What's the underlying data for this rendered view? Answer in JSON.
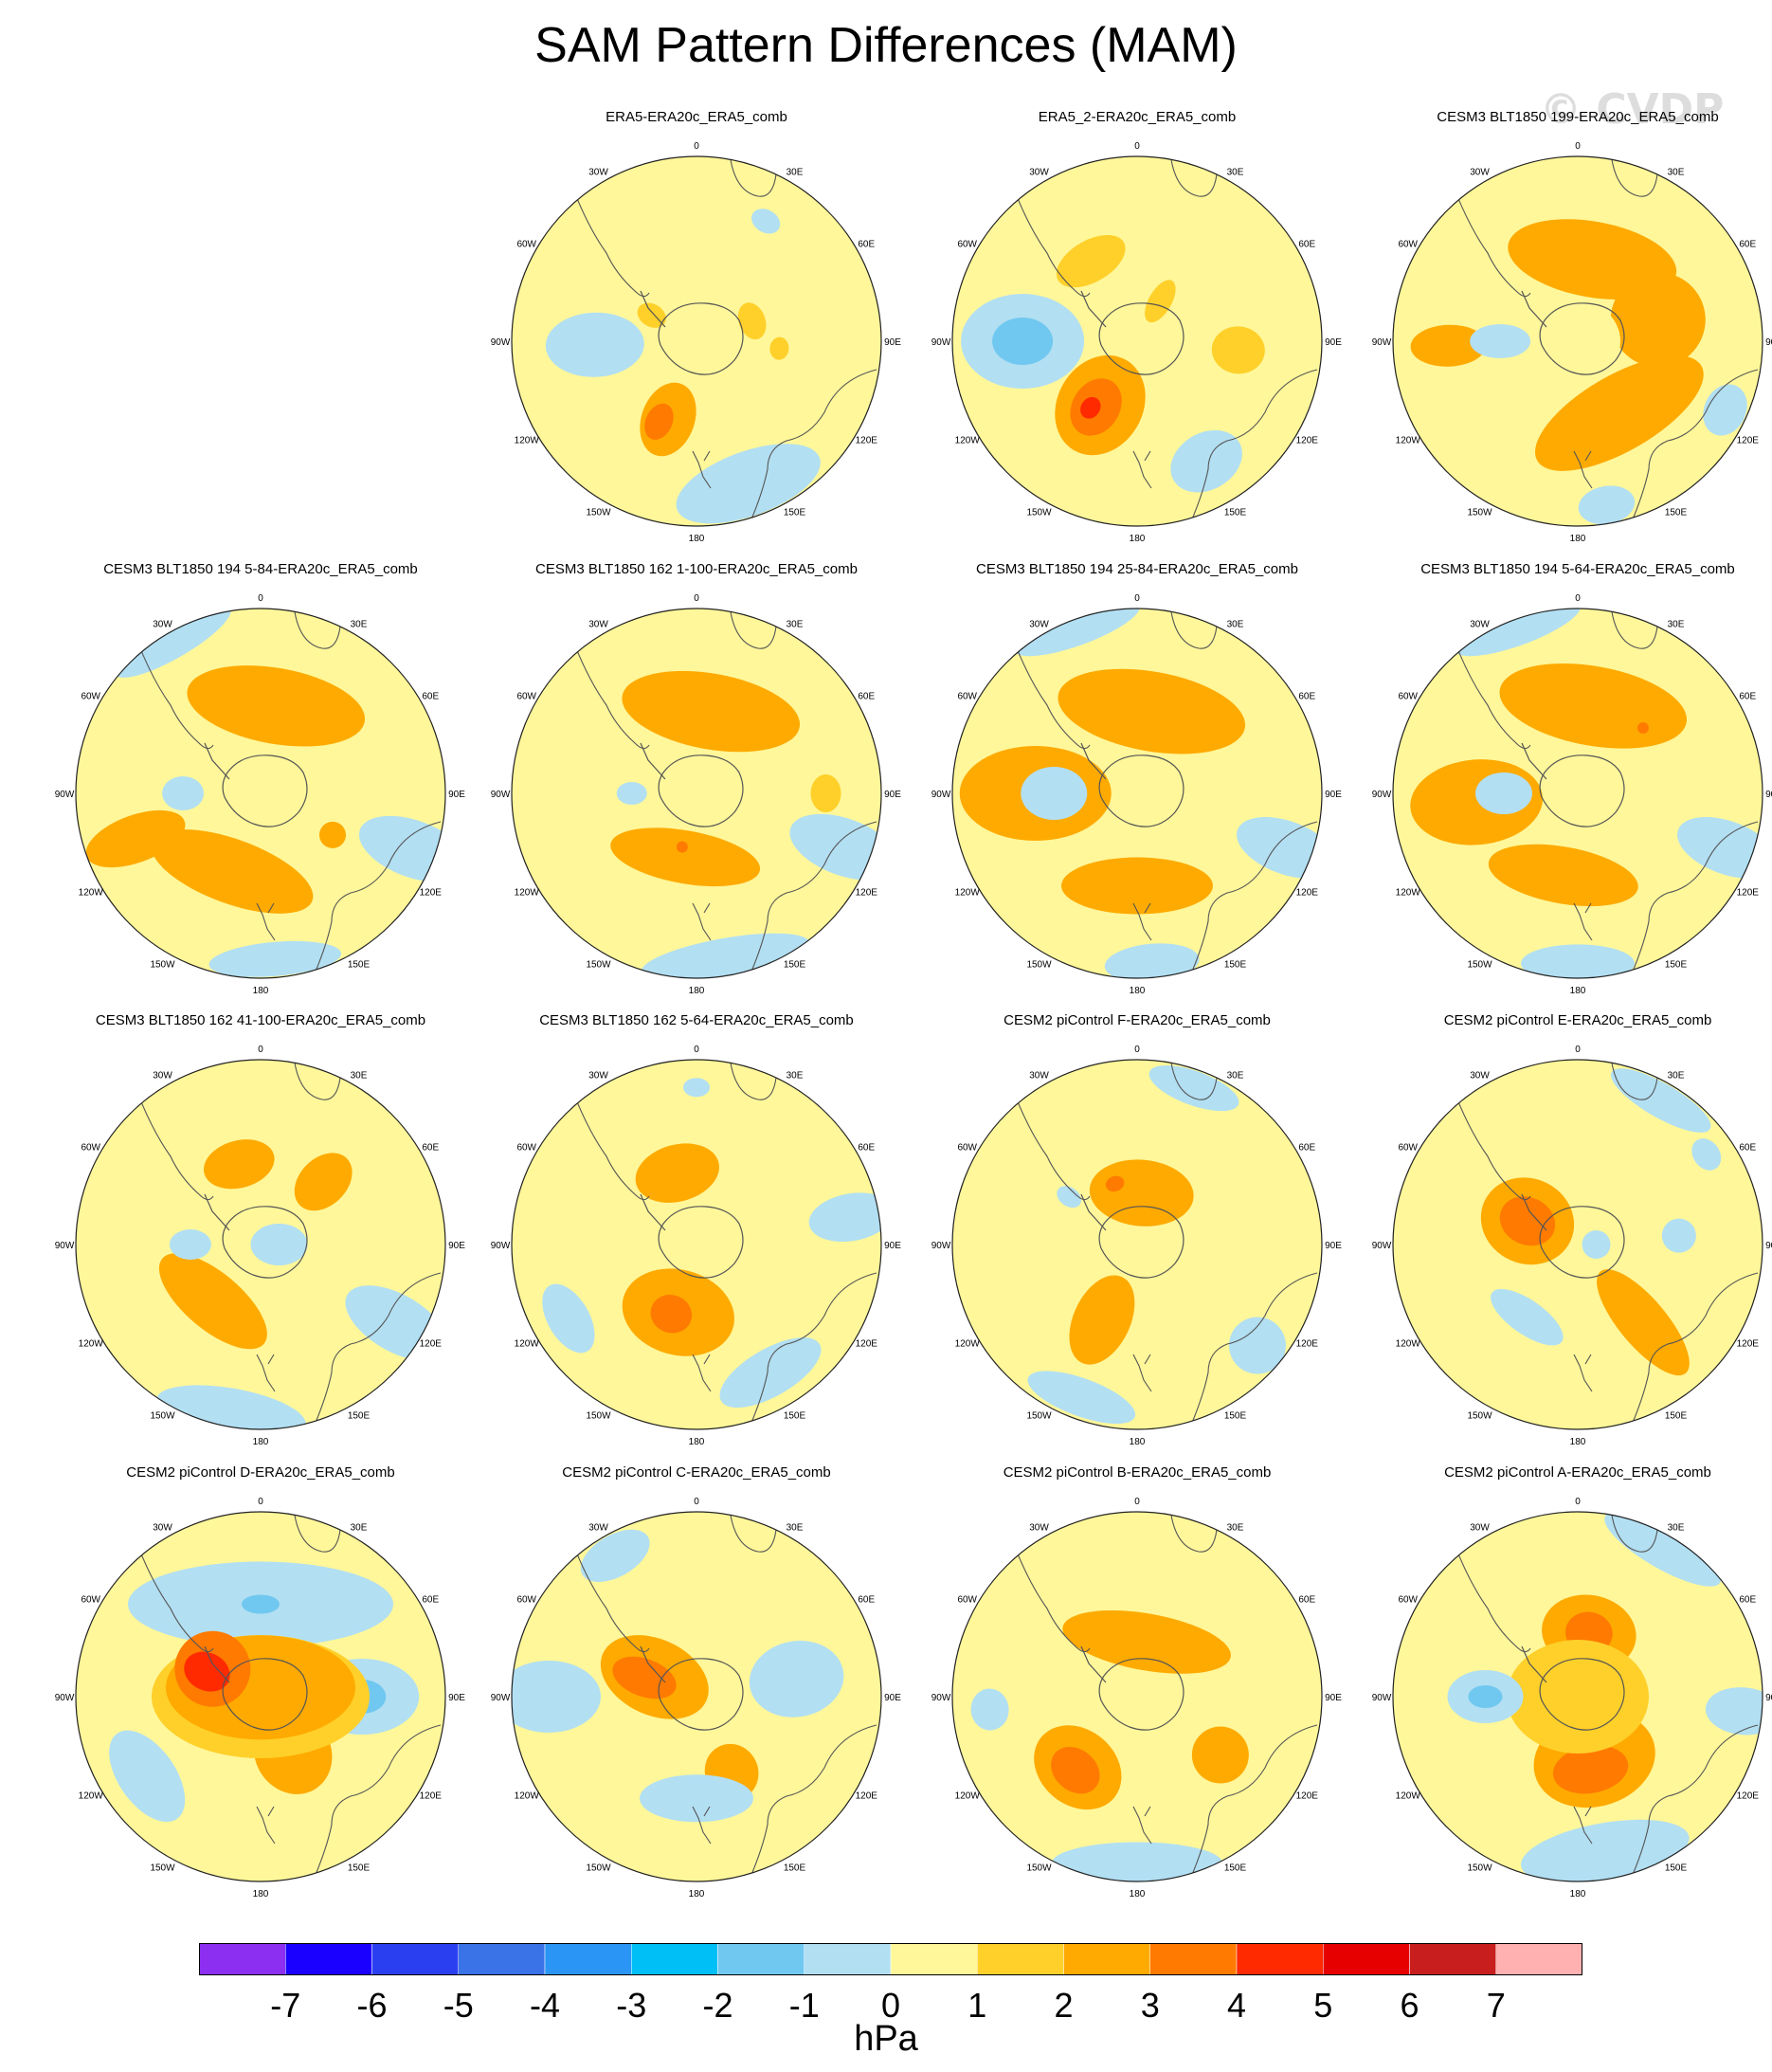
{
  "title": "SAM Pattern Differences (MAM)",
  "watermark": "© CVDP",
  "units": "hPa",
  "lon_labels": [
    "0",
    "30E",
    "60E",
    "90E",
    "120E",
    "150E",
    "180",
    "150W",
    "120W",
    "90W",
    "60W",
    "30W"
  ],
  "colorbar": {
    "colors": [
      "#8c2ff0",
      "#1a00ff",
      "#2a40f0",
      "#3a72e8",
      "#2a95f5",
      "#00bff7",
      "#70c8f0",
      "#b2dff2",
      "#fff79a",
      "#ffd02a",
      "#ffaa00",
      "#ff7a00",
      "#ff2a00",
      "#e60000",
      "#c81e1e",
      "#ffb0b0"
    ],
    "labels": [
      "-7",
      "-6",
      "-5",
      "-4",
      "-3",
      "-2",
      "-1",
      "0",
      "1",
      "2",
      "3",
      "4",
      "5",
      "6",
      "7"
    ]
  },
  "panels": [
    {
      "title": "ERA5-ERA20c_ERA5_comb",
      "blobs": [
        {
          "lon": 200,
          "r": 0.45,
          "rx": 28,
          "ry": 40,
          "level": 2
        },
        {
          "lon": 205,
          "r": 0.48,
          "rx": 14,
          "ry": 20,
          "level": 3
        },
        {
          "lon": 160,
          "r": 0.82,
          "rx": 80,
          "ry": 34,
          "level": -1
        },
        {
          "lon": 268,
          "r": 0.55,
          "rx": 34,
          "ry": 52,
          "level": -1
        },
        {
          "lon": 30,
          "r": 0.75,
          "rx": 16,
          "ry": 12,
          "level": -1
        },
        {
          "lon": 300,
          "r": 0.28,
          "rx": 12,
          "ry": 16,
          "level": 1
        },
        {
          "lon": 70,
          "r": 0.32,
          "rx": 20,
          "ry": 14,
          "level": 1
        },
        {
          "lon": 95,
          "r": 0.45,
          "rx": 12,
          "ry": 10,
          "level": 1
        }
      ]
    },
    {
      "title": "ERA5_2-ERA20c_ERA5_comb",
      "blobs": [
        {
          "lon": 210,
          "r": 0.4,
          "rx": 45,
          "ry": 55,
          "level": 2
        },
        {
          "lon": 212,
          "r": 0.42,
          "rx": 25,
          "ry": 32,
          "level": 3
        },
        {
          "lon": 215,
          "r": 0.44,
          "rx": 10,
          "ry": 12,
          "level": 4
        },
        {
          "lon": 270,
          "r": 0.62,
          "rx": 50,
          "ry": 65,
          "level": -1
        },
        {
          "lon": 270,
          "r": 0.62,
          "rx": 25,
          "ry": 32,
          "level": -2
        },
        {
          "lon": 150,
          "r": 0.75,
          "rx": 40,
          "ry": 30,
          "level": -1
        },
        {
          "lon": 95,
          "r": 0.55,
          "rx": 25,
          "ry": 28,
          "level": 1
        },
        {
          "lon": 330,
          "r": 0.5,
          "rx": 40,
          "ry": 22,
          "level": 1
        },
        {
          "lon": 30,
          "r": 0.25,
          "rx": 12,
          "ry": 25,
          "level": 1
        }
      ]
    },
    {
      "title": "CESM3 BLT1850 199-ERA20c_ERA5_comb",
      "blobs": [
        {
          "lon": 10,
          "r": 0.45,
          "rx": 90,
          "ry": 40,
          "level": 2
        },
        {
          "lon": 150,
          "r": 0.45,
          "rx": 100,
          "ry": 40,
          "level": 2
        },
        {
          "lon": 75,
          "r": 0.45,
          "rx": 50,
          "ry": 50,
          "level": 2
        },
        {
          "lon": 268,
          "r": 0.7,
          "rx": 22,
          "ry": 40,
          "level": 2
        },
        {
          "lon": 0,
          "r": 0.0,
          "rx": 45,
          "ry": 42,
          "level": 0
        },
        {
          "lon": 270,
          "r": 0.42,
          "rx": 18,
          "ry": 32,
          "level": -1
        },
        {
          "lon": 170,
          "r": 0.9,
          "rx": 30,
          "ry": 20,
          "level": -1
        },
        {
          "lon": 115,
          "r": 0.88,
          "rx": 28,
          "ry": 22,
          "level": -1
        }
      ]
    },
    {
      "title": "CESM3 BLT1850 194 5-84-ERA20c_ERA5_comb",
      "blobs": [
        {
          "lon": 10,
          "r": 0.48,
          "rx": 95,
          "ry": 40,
          "level": 2
        },
        {
          "lon": 200,
          "r": 0.45,
          "rx": 90,
          "ry": 34,
          "level": 2
        },
        {
          "lon": 250,
          "r": 0.72,
          "rx": 25,
          "ry": 55,
          "level": 2
        },
        {
          "lon": 120,
          "r": 0.45,
          "rx": 14,
          "ry": 14,
          "level": 2
        },
        {
          "lon": 270,
          "r": 0.42,
          "rx": 18,
          "ry": 22,
          "level": -1
        },
        {
          "lon": 330,
          "r": 0.95,
          "rx": 70,
          "ry": 18,
          "level": -1
        },
        {
          "lon": 175,
          "r": 0.9,
          "rx": 70,
          "ry": 18,
          "level": -1
        },
        {
          "lon": 110,
          "r": 0.88,
          "rx": 30,
          "ry": 60,
          "level": -1
        }
      ]
    },
    {
      "title": "CESM3 BLT1850 162 1-100-ERA20c_ERA5_comb",
      "blobs": [
        {
          "lon": 10,
          "r": 0.45,
          "rx": 95,
          "ry": 40,
          "level": 2
        },
        {
          "lon": 190,
          "r": 0.35,
          "rx": 80,
          "ry": 28,
          "level": 2
        },
        {
          "lon": 195,
          "r": 0.3,
          "rx": 6,
          "ry": 6,
          "level": 3
        },
        {
          "lon": 270,
          "r": 0.35,
          "rx": 12,
          "ry": 16,
          "level": -1
        },
        {
          "lon": 170,
          "r": 0.9,
          "rx": 90,
          "ry": 20,
          "level": -1
        },
        {
          "lon": 110,
          "r": 0.85,
          "rx": 30,
          "ry": 60,
          "level": -1
        },
        {
          "lon": 90,
          "r": 0.7,
          "rx": 20,
          "ry": 16,
          "level": 1
        }
      ]
    },
    {
      "title": "CESM3 BLT1850 194 25-84-ERA20c_ERA5_comb",
      "blobs": [
        {
          "lon": 10,
          "r": 0.45,
          "rx": 100,
          "ry": 42,
          "level": 2
        },
        {
          "lon": 270,
          "r": 0.55,
          "rx": 50,
          "ry": 80,
          "level": 2
        },
        {
          "lon": 180,
          "r": 0.5,
          "rx": 80,
          "ry": 30,
          "level": 2
        },
        {
          "lon": 270,
          "r": 0.45,
          "rx": 28,
          "ry": 35,
          "level": -1
        },
        {
          "lon": 340,
          "r": 0.95,
          "rx": 70,
          "ry": 18,
          "level": -1
        },
        {
          "lon": 175,
          "r": 0.92,
          "rx": 50,
          "ry": 20,
          "level": -1
        },
        {
          "lon": 110,
          "r": 0.86,
          "rx": 28,
          "ry": 55,
          "level": -1
        }
      ]
    },
    {
      "title": "CESM3 BLT1850 194 5-64-ERA20c_ERA5_comb",
      "blobs": [
        {
          "lon": 10,
          "r": 0.48,
          "rx": 100,
          "ry": 42,
          "level": 2
        },
        {
          "lon": 45,
          "r": 0.5,
          "rx": 6,
          "ry": 6,
          "level": 3
        },
        {
          "lon": 265,
          "r": 0.55,
          "rx": 45,
          "ry": 70,
          "level": 2
        },
        {
          "lon": 190,
          "r": 0.45,
          "rx": 80,
          "ry": 30,
          "level": 2
        },
        {
          "lon": 270,
          "r": 0.4,
          "rx": 22,
          "ry": 30,
          "level": -1
        },
        {
          "lon": 340,
          "r": 0.95,
          "rx": 70,
          "ry": 18,
          "level": -1
        },
        {
          "lon": 180,
          "r": 0.92,
          "rx": 60,
          "ry": 20,
          "level": -1
        },
        {
          "lon": 110,
          "r": 0.86,
          "rx": 28,
          "ry": 55,
          "level": -1
        }
      ]
    },
    {
      "title": "CESM3 BLT1850 162 41-100-ERA20c_ERA5_comb",
      "blobs": [
        {
          "lon": 345,
          "r": 0.45,
          "rx": 38,
          "ry": 25,
          "level": 2
        },
        {
          "lon": 45,
          "r": 0.48,
          "rx": 25,
          "ry": 35,
          "level": 2
        },
        {
          "lon": 220,
          "r": 0.4,
          "rx": 70,
          "ry": 30,
          "level": 2
        },
        {
          "lon": 270,
          "r": 0.38,
          "rx": 16,
          "ry": 22,
          "level": -1
        },
        {
          "lon": 90,
          "r": 0.1,
          "rx": 22,
          "ry": 30,
          "level": -1
        },
        {
          "lon": 190,
          "r": 0.92,
          "rx": 80,
          "ry": 25,
          "level": -1
        },
        {
          "lon": 120,
          "r": 0.85,
          "rx": 30,
          "ry": 60,
          "level": -1
        }
      ]
    },
    {
      "title": "CESM3 BLT1850 162 5-64-ERA20c_ERA5_comb",
      "blobs": [
        {
          "lon": 345,
          "r": 0.4,
          "rx": 45,
          "ry": 30,
          "level": 2
        },
        {
          "lon": 195,
          "r": 0.38,
          "rx": 60,
          "ry": 45,
          "level": 2
        },
        {
          "lon": 200,
          "r": 0.4,
          "rx": 22,
          "ry": 20,
          "level": 3
        },
        {
          "lon": 150,
          "r": 0.8,
          "rx": 60,
          "ry": 25,
          "level": -1
        },
        {
          "lon": 240,
          "r": 0.8,
          "rx": 40,
          "ry": 22,
          "level": -1
        },
        {
          "lon": 80,
          "r": 0.85,
          "rx": 25,
          "ry": 45,
          "level": -1
        },
        {
          "lon": 0,
          "r": 0.85,
          "rx": 14,
          "ry": 10,
          "level": -1
        }
      ]
    },
    {
      "title": "CESM2 piControl F-ERA20c_ERA5_comb",
      "blobs": [
        {
          "lon": 5,
          "r": 0.28,
          "rx": 55,
          "ry": 35,
          "level": 2
        },
        {
          "lon": 340,
          "r": 0.35,
          "rx": 10,
          "ry": 8,
          "level": 3
        },
        {
          "lon": 205,
          "r": 0.45,
          "rx": 30,
          "ry": 50,
          "level": 2
        },
        {
          "lon": 20,
          "r": 0.9,
          "rx": 50,
          "ry": 18,
          "level": -1
        },
        {
          "lon": 200,
          "r": 0.88,
          "rx": 60,
          "ry": 20,
          "level": -1
        },
        {
          "lon": 130,
          "r": 0.85,
          "rx": 30,
          "ry": 30,
          "level": -1
        },
        {
          "lon": 305,
          "r": 0.45,
          "rx": 10,
          "ry": 14,
          "level": -1
        }
      ]
    },
    {
      "title": "CESM2 piControl E-ERA20c_ERA5_comb",
      "blobs": [
        {
          "lon": 295,
          "r": 0.3,
          "rx": 45,
          "ry": 50,
          "level": 2
        },
        {
          "lon": 295,
          "r": 0.3,
          "rx": 25,
          "ry": 30,
          "level": 3
        },
        {
          "lon": 140,
          "r": 0.55,
          "rx": 25,
          "ry": 70,
          "level": 2
        },
        {
          "lon": 30,
          "r": 0.9,
          "rx": 60,
          "ry": 18,
          "level": -1
        },
        {
          "lon": 215,
          "r": 0.48,
          "rx": 45,
          "ry": 18,
          "level": -1
        },
        {
          "lon": 85,
          "r": 0.55,
          "rx": 18,
          "ry": 18,
          "level": -1
        },
        {
          "lon": 55,
          "r": 0.85,
          "rx": 18,
          "ry": 14,
          "level": -1
        },
        {
          "lon": 90,
          "r": 0.1,
          "rx": 15,
          "ry": 15,
          "level": -1
        }
      ]
    },
    {
      "title": "CESM2 piControl D-ERA20c_ERA5_comb",
      "blobs": [
        {
          "lon": 0,
          "r": 0.5,
          "rx": 140,
          "ry": 45,
          "level": -1
        },
        {
          "lon": 0,
          "r": 0.5,
          "rx": 20,
          "ry": 10,
          "level": -2
        },
        {
          "lon": 90,
          "r": 0.55,
          "rx": 40,
          "ry": 60,
          "level": -1
        },
        {
          "lon": 90,
          "r": 0.55,
          "rx": 18,
          "ry": 25,
          "level": -2
        },
        {
          "lon": 235,
          "r": 0.75,
          "rx": 55,
          "ry": 30,
          "level": -1
        },
        {
          "lon": 150,
          "r": 0.35,
          "rx": 40,
          "ry": 45,
          "level": 2
        },
        {
          "lon": 0,
          "r": 0.0,
          "rx": 115,
          "ry": 65,
          "level": 1
        },
        {
          "lon": 0,
          "r": 0.05,
          "rx": 100,
          "ry": 55,
          "level": 2
        },
        {
          "lon": 300,
          "r": 0.3,
          "rx": 40,
          "ry": 40,
          "level": 3
        },
        {
          "lon": 295,
          "r": 0.32,
          "rx": 20,
          "ry": 25,
          "level": 4
        }
      ]
    },
    {
      "title": "CESM2 piControl C-ERA20c_ERA5_comb",
      "blobs": [
        {
          "lon": 295,
          "r": 0.25,
          "rx": 40,
          "ry": 60,
          "level": 2
        },
        {
          "lon": 290,
          "r": 0.3,
          "rx": 20,
          "ry": 35,
          "level": 3
        },
        {
          "lon": 155,
          "r": 0.45,
          "rx": 28,
          "ry": 30,
          "level": 2
        },
        {
          "lon": 80,
          "r": 0.55,
          "rx": 40,
          "ry": 50,
          "level": -1
        },
        {
          "lon": 270,
          "r": 0.8,
          "rx": 38,
          "ry": 55,
          "level": -1
        },
        {
          "lon": 180,
          "r": 0.55,
          "rx": 60,
          "ry": 25,
          "level": -1
        },
        {
          "lon": 330,
          "r": 0.88,
          "rx": 40,
          "ry": 22,
          "level": -1
        }
      ]
    },
    {
      "title": "CESM2 piControl B-ERA20c_ERA5_comb",
      "blobs": [
        {
          "lon": 10,
          "r": 0.3,
          "rx": 90,
          "ry": 30,
          "level": 2
        },
        {
          "lon": 220,
          "r": 0.5,
          "rx": 50,
          "ry": 40,
          "level": 2
        },
        {
          "lon": 220,
          "r": 0.52,
          "rx": 28,
          "ry": 22,
          "level": 3
        },
        {
          "lon": 125,
          "r": 0.55,
          "rx": 30,
          "ry": 30,
          "level": 2
        },
        {
          "lon": 180,
          "r": 0.9,
          "rx": 90,
          "ry": 22,
          "level": -1
        },
        {
          "lon": 265,
          "r": 0.8,
          "rx": 22,
          "ry": 20,
          "level": -1
        }
      ]
    },
    {
      "title": "CESM2 piControl A-ERA20c_ERA5_comb",
      "blobs": [
        {
          "lon": 10,
          "r": 0.35,
          "rx": 50,
          "ry": 40,
          "level": 2
        },
        {
          "lon": 10,
          "r": 0.35,
          "rx": 25,
          "ry": 22,
          "level": 3
        },
        {
          "lon": 165,
          "r": 0.35,
          "rx": 65,
          "ry": 50,
          "level": 2
        },
        {
          "lon": 170,
          "r": 0.4,
          "rx": 40,
          "ry": 25,
          "level": 3
        },
        {
          "lon": 0,
          "r": 0.0,
          "rx": 75,
          "ry": 60,
          "level": 1
        },
        {
          "lon": 270,
          "r": 0.5,
          "rx": 28,
          "ry": 40,
          "level": -1
        },
        {
          "lon": 270,
          "r": 0.5,
          "rx": 12,
          "ry": 18,
          "level": -2
        },
        {
          "lon": 30,
          "r": 0.92,
          "rx": 70,
          "ry": 20,
          "level": -1
        },
        {
          "lon": 170,
          "r": 0.85,
          "rx": 90,
          "ry": 30,
          "level": -1
        },
        {
          "lon": 95,
          "r": 0.9,
          "rx": 25,
          "ry": 40,
          "level": -1
        }
      ]
    }
  ]
}
